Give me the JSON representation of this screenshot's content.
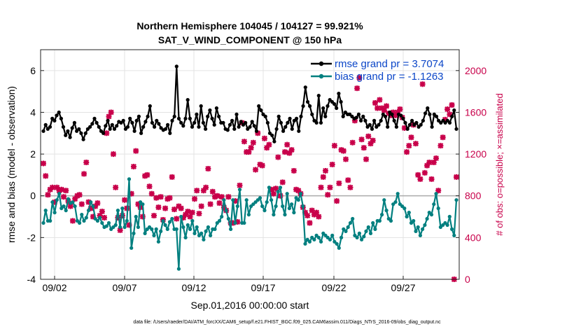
{
  "chart_data": {
    "type": "line",
    "title": "Northern Hemisphere 104045 / 104127 = 99.921%",
    "subtitle": "SAT_V_WIND_COMPONENT @ 150 hPa",
    "xlabel": "Sep.01,2016 00:00:00 start",
    "ylabel": "rmse and bias (model - observation)",
    "ylabel_right": "# of obs: o=possible; ×=assimilated",
    "x_ticks": [
      "09/02",
      "09/07",
      "09/12",
      "09/17",
      "09/22",
      "09/27"
    ],
    "y_ticks": [
      "-4",
      "-2",
      "0",
      "2",
      "4",
      "6"
    ],
    "y_right_ticks": [
      "0",
      "400",
      "800",
      "1200",
      "1600",
      "2000"
    ],
    "ylim": [
      -4,
      7
    ],
    "ylim_right": [
      0,
      2200
    ],
    "grid": true,
    "legend_position": "top-right",
    "footnote": "data file: /Users/raeder/DAI/ATM_forcXX/CAM6_setup/f.e21.FHIST_BGC.f09_025.CAM6assim.011/Diags_NTrS_2016-09/obs_diag_output.nc",
    "series": [
      {
        "name": "rmse grand pr = 3.7074",
        "color": "#000000",
        "values": [
          3.1,
          3.4,
          3.2,
          3.3,
          3.7,
          3.6,
          3.85,
          4.0,
          3.7,
          3.3,
          2.9,
          3.1,
          2.8,
          3.25,
          3.5,
          3.1,
          3.2,
          3.0,
          2.7,
          3.0,
          3.2,
          3.3,
          3.45,
          3.7,
          3.5,
          3.3,
          3.1,
          3.0,
          3.35,
          3.6,
          3.2,
          3.4,
          3.2,
          3.35,
          3.55,
          3.5,
          3.6,
          3.2,
          3.3,
          3.7,
          3.5,
          3.1,
          3.6,
          3.8,
          3.0,
          3.3,
          3.55,
          3.8,
          4.3,
          3.5,
          3.3,
          3.6,
          3.45,
          3.25,
          3.15,
          3.2,
          3.4,
          3.0,
          3.6,
          3.8,
          6.2,
          3.7,
          3.5,
          3.35,
          3.7,
          4.6,
          3.7,
          3.3,
          3.5,
          3.9,
          3.3,
          4.3,
          3.5,
          3.2,
          3.8,
          4.1,
          3.7,
          3.4,
          4.2,
          3.8,
          3.5,
          3.5,
          3.2,
          3.15,
          3.4,
          3.6,
          3.2,
          3.9,
          3.3,
          3.55,
          3.4,
          3.5,
          3.2,
          3.3,
          3.55,
          3.35,
          3.1,
          4.3,
          4.1,
          3.9,
          3.8,
          3.5,
          3.0,
          2.9,
          2.6,
          3.2,
          3.8,
          3.5,
          3.1,
          3.3,
          3.5,
          3.7,
          3.2,
          3.6,
          3.7,
          3.1,
          3.8,
          4.3,
          5.2,
          4.5,
          4.3,
          3.9,
          3.6,
          3.5,
          4.8,
          3.5,
          4.2,
          3.8,
          4.3,
          4.6,
          4.5,
          4.4,
          4.2,
          4.9,
          4.5,
          3.8,
          4.0,
          3.9,
          3.9,
          3.8,
          3.7,
          3.75,
          3.9,
          3.6,
          3.8,
          3.6,
          3.3,
          3.4,
          3.2,
          3.6,
          3.3,
          3.4,
          3.6,
          3.9,
          3.8,
          3.3,
          4.0,
          3.9,
          3.6,
          3.3,
          3.9,
          3.85,
          3.7,
          3.5,
          3.2,
          3.4,
          3.6,
          3.4,
          3.5,
          3.3,
          3.4,
          3.6,
          3.95,
          4.2,
          3.9,
          3.3,
          3.9,
          3.8,
          3.6,
          3.5,
          3.6,
          3.5,
          3.6,
          3.5,
          3.8,
          4.1,
          3.2
        ]
      },
      {
        "name": "bias grand pr = -1.1263",
        "color": "#007f7f",
        "values": [
          -1.3,
          -0.7,
          -1.2,
          -1.2,
          -0.3,
          -0.8,
          -0.2,
          0.1,
          -0.6,
          -0.5,
          -0.7,
          -0.15,
          -0.35,
          -0.3,
          -0.5,
          -1.2,
          -1.3,
          -0.9,
          -1.2,
          -1.05,
          -0.7,
          -0.3,
          -0.5,
          -1.1,
          -1.2,
          -1.05,
          -1.3,
          -1.5,
          -1.45,
          -1.3,
          -1.6,
          -1.5,
          -1.4,
          -0.7,
          -1.5,
          -0.6,
          -1.5,
          -1.2,
          0.8,
          -2.5,
          -1.8,
          -1.0,
          -1.5,
          -0.3,
          -0.4,
          -1.8,
          -1.6,
          -1.5,
          -1.6,
          -1.9,
          -1.6,
          -2.2,
          -1.7,
          -1.2,
          -1.4,
          -1.6,
          -1.25,
          -1.1,
          -1.6,
          -1.6,
          -3.5,
          -1.0,
          -1.5,
          -2.0,
          -1.4,
          -1.6,
          -1.2,
          -1.8,
          -1.5,
          -1.9,
          -1.8,
          -2.1,
          -1.7,
          -1.5,
          -1.9,
          -1.6,
          -1.6,
          -1.3,
          -1.2,
          -1.0,
          -0.2,
          -0.7,
          -1.1,
          -1.6,
          -0.2,
          -1.3,
          -0.5,
          0.3,
          -1.3,
          -1.3,
          -0.2,
          -0.9,
          -0.5,
          -0.4,
          -0.3,
          -0.2,
          -0.1,
          -0.5,
          -0.7,
          -0.3,
          0.4,
          -0.2,
          -0.9,
          -0.5,
          0.2,
          0.4,
          -0.5,
          -0.9,
          0.1,
          -0.6,
          -0.4,
          -0.8,
          -0.1,
          -0.2,
          0.1,
          -0.5,
          -2.3,
          -2.1,
          -2.2,
          -2.0,
          -2.1,
          -1.9,
          -2.0,
          -2.2,
          -1.8,
          -1.9,
          -2.0,
          -2.1,
          -1.9,
          -2.2,
          -2.3,
          -2.5,
          -2.0,
          -1.6,
          -1.7,
          -1.5,
          -1.3,
          -1.1,
          -1.9,
          -2.0,
          -1.8,
          -2.1,
          -1.95,
          -1.7,
          -1.5,
          -1.8,
          -1.3,
          -1.6,
          -1.2,
          -1.2,
          -0.9,
          -0.2,
          -0.7,
          -1.1,
          -1.2,
          -0.4,
          -0.3,
          0.1,
          -0.4,
          -0.5,
          -0.6,
          -1.0,
          -0.8,
          -1.3,
          -1.2,
          -1.7,
          -1.5,
          -1.9,
          -1.6,
          -1.4,
          -1.1,
          -0.8,
          -0.9,
          -0.4,
          0.1,
          -0.6,
          -1.5,
          -1.4,
          -1.3,
          -1.4,
          -1.0,
          -1.6,
          -1.9,
          -0.2
        ]
      },
      {
        "name": "# of obs",
        "color": "#c8004a",
        "marker": "x",
        "values": [
          1110,
          990,
          810,
          860,
          880,
          740,
          880,
          850,
          860,
          790,
          850,
          750,
          700,
          560,
          770,
          800,
          810,
          720,
          1010,
          1120,
          740,
          680,
          600,
          700,
          730,
          610,
          650,
          590,
          1400,
          1560,
          1600,
          1200,
          880,
          590,
          470,
          610,
          760,
          680,
          520,
          820,
          1080,
          1230,
          720,
          690,
          600,
          990,
          1000,
          890,
          820,
          610,
          780,
          690,
          790,
          570,
          680,
          770,
          780,
          980,
          670,
          580,
          700,
          680,
          590,
          620,
          650,
          600,
          640,
          770,
          850,
          630,
          700,
          850,
          880,
          1060,
          720,
          840,
          790,
          800,
          730,
          790,
          690,
          660,
          790,
          540,
          540,
          750,
          550,
          900,
          1500,
          1320,
          1220,
          1220,
          1260,
          1310,
          1050,
          1400,
          1100,
          1090,
          1350,
          1260,
          1290,
          860,
          820,
          870,
          1170,
          800,
          930,
          1220,
          1290,
          1210,
          1240,
          1040,
          860,
          850,
          820,
          690,
          640,
          610,
          540,
          660,
          620,
          640,
          600,
          880,
          980,
          1040,
          810,
          880,
          1100,
          1280,
          750,
          920,
          1240,
          1230,
          1150,
          950,
          880,
          1310,
          1520,
          1830,
          1930,
          1340,
          1260,
          1150,
          1370,
          1300,
          1330,
          1690,
          1640,
          1720,
          1640,
          1620,
          1660,
          1590,
          1570,
          1600,
          1570,
          1600,
          1630,
          1550,
          1450,
          1220,
          1280,
          1360,
          1480,
          1300,
          1000,
          960,
          1870,
          1020,
          1090,
          1120,
          960,
          1120,
          1160,
          850,
          1280,
          1360,
          1530,
          1630,
          1580,
          1670,
          0,
          980
        ]
      }
    ]
  }
}
